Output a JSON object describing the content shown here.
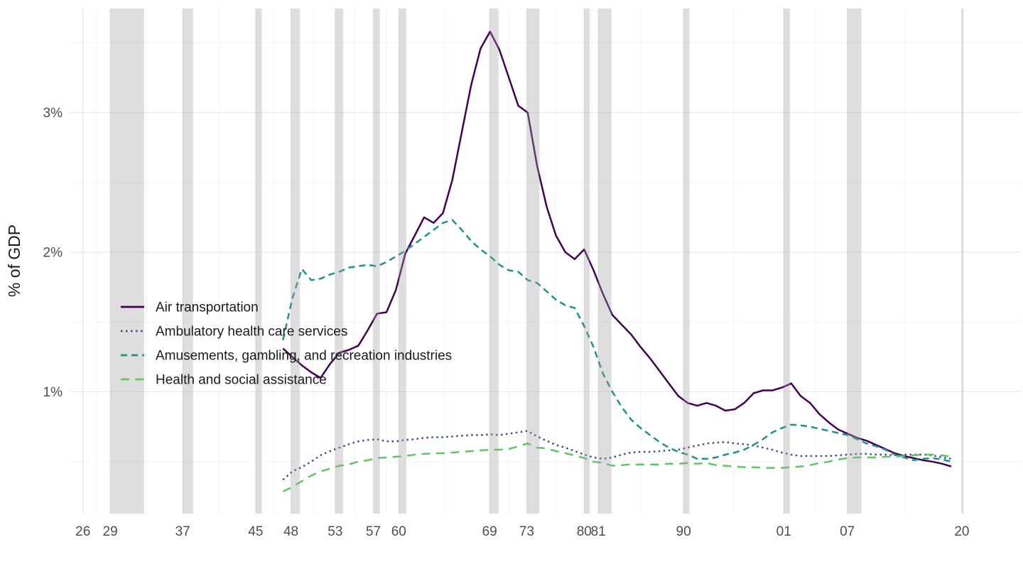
{
  "chart_data": {
    "type": "line",
    "title": "",
    "xlabel": "",
    "ylabel": "% of GDP",
    "x_domain": [
      1925.4,
      2026.5
    ],
    "y_domain": [
      0.13,
      3.74
    ],
    "grid": true,
    "legend_position": "inside-left",
    "background_color": "#ffffff",
    "major_grid_color": "#e8e8e8",
    "minor_grid_color": "#f3f3f3",
    "tick_text_color": "#4d4d4d",
    "recession_band_color": "rgba(160,160,160,0.35)",
    "y_ticks": [
      {
        "value": 1,
        "label": "1%"
      },
      {
        "value": 2,
        "label": "2%"
      },
      {
        "value": 3,
        "label": "3%"
      }
    ],
    "y_minor": [
      0.5,
      1.5,
      2.5,
      3.5
    ],
    "x_ticks": [
      {
        "x": 1926.75,
        "label": "26"
      },
      {
        "x": 1929.65,
        "label": "29"
      },
      {
        "x": 1937.35,
        "label": "37"
      },
      {
        "x": 1945.1,
        "label": "45"
      },
      {
        "x": 1948.85,
        "label": "48"
      },
      {
        "x": 1953.55,
        "label": "53"
      },
      {
        "x": 1957.6,
        "label": "57"
      },
      {
        "x": 1960.3,
        "label": "60"
      },
      {
        "x": 1969.95,
        "label": "69"
      },
      {
        "x": 1973.9,
        "label": "73"
      },
      {
        "x": 1980.0,
        "label": "80"
      },
      {
        "x": 1981.5,
        "label": "81"
      },
      {
        "x": 1990.55,
        "label": "90"
      },
      {
        "x": 2001.2,
        "label": "01"
      },
      {
        "x": 2007.95,
        "label": "07"
      },
      {
        "x": 2020.12,
        "label": "20"
      }
    ],
    "x_minor": [
      1928.2,
      1933.5,
      1941.23,
      1946.98,
      1951.2,
      1955.58,
      1958.95,
      1965.13,
      1971.93,
      1976.95,
      1980.75,
      1986.03,
      1995.88,
      2004.58,
      2014.04
    ],
    "recession_bands": [
      [
        1929.65,
        1933.25
      ],
      [
        1937.35,
        1938.45
      ],
      [
        1945.1,
        1945.75
      ],
      [
        1948.85,
        1949.8
      ],
      [
        1953.55,
        1954.4
      ],
      [
        1957.6,
        1958.3
      ],
      [
        1960.3,
        1961.1
      ],
      [
        1969.95,
        1970.9
      ],
      [
        1973.9,
        1975.25
      ],
      [
        1980.0,
        1980.58
      ],
      [
        1981.5,
        1982.9
      ],
      [
        1990.55,
        1991.2
      ],
      [
        2001.2,
        2001.85
      ],
      [
        2007.95,
        2009.45
      ],
      [
        2020.12,
        2020.3
      ]
    ],
    "start_year": 1948,
    "end_year": 2019,
    "frequency": "annual",
    "years": [
      1948,
      1949,
      1950,
      1951,
      1952,
      1953,
      1954,
      1955,
      1956,
      1957,
      1958,
      1959,
      1960,
      1961,
      1962,
      1963,
      1964,
      1965,
      1966,
      1967,
      1968,
      1969,
      1970,
      1971,
      1972,
      1973,
      1974,
      1975,
      1976,
      1977,
      1978,
      1979,
      1980,
      1981,
      1982,
      1983,
      1984,
      1985,
      1986,
      1987,
      1988,
      1989,
      1990,
      1991,
      1992,
      1993,
      1994,
      1995,
      1996,
      1997,
      1998,
      1999,
      2000,
      2001,
      2002,
      2003,
      2004,
      2005,
      2006,
      2007,
      2008,
      2009,
      2010,
      2011,
      2012,
      2013,
      2014,
      2015,
      2016,
      2017,
      2018,
      2019
    ],
    "series": [
      {
        "name": "Air transportation",
        "color": "#440154",
        "linetype": "solid",
        "values": [
          1.31,
          1.25,
          1.19,
          1.14,
          1.1,
          1.2,
          1.28,
          1.3,
          1.33,
          1.44,
          1.56,
          1.57,
          1.73,
          1.99,
          2.12,
          2.25,
          2.21,
          2.28,
          2.52,
          2.86,
          3.2,
          3.46,
          3.58,
          3.45,
          3.25,
          3.05,
          3.0,
          2.62,
          2.33,
          2.12,
          2.0,
          1.95,
          2.02,
          1.87,
          1.7,
          1.55,
          1.48,
          1.41,
          1.32,
          1.24,
          1.15,
          1.06,
          0.97,
          0.92,
          0.9,
          0.92,
          0.9,
          0.865,
          0.875,
          0.92,
          0.99,
          1.01,
          1.01,
          1.03,
          1.06,
          0.97,
          0.92,
          0.84,
          0.78,
          0.73,
          0.7,
          0.67,
          0.65,
          0.62,
          0.59,
          0.56,
          0.54,
          0.525,
          0.51,
          0.5,
          0.485,
          0.465
        ]
      },
      {
        "name": "Ambulatory health care services",
        "color": "#3B528B",
        "linetype": "dotted",
        "values": [
          0.37,
          0.43,
          0.46,
          0.5,
          0.545,
          0.575,
          0.6,
          0.625,
          0.645,
          0.655,
          0.66,
          0.645,
          0.645,
          0.655,
          0.66,
          0.67,
          0.675,
          0.675,
          0.68,
          0.685,
          0.69,
          0.69,
          0.695,
          0.69,
          0.7,
          0.71,
          0.72,
          0.68,
          0.65,
          0.62,
          0.6,
          0.575,
          0.55,
          0.53,
          0.52,
          0.53,
          0.55,
          0.565,
          0.57,
          0.57,
          0.575,
          0.58,
          0.585,
          0.6,
          0.615,
          0.63,
          0.635,
          0.64,
          0.63,
          0.625,
          0.615,
          0.6,
          0.585,
          0.565,
          0.55,
          0.54,
          0.54,
          0.54,
          0.54,
          0.545,
          0.55,
          0.555,
          0.555,
          0.55,
          0.55,
          0.545,
          0.55,
          0.55,
          0.55,
          0.545,
          0.53,
          0.52
        ]
      },
      {
        "name": "Amusements, gambling, and recreation industries",
        "color": "#21908C",
        "linetype": "dashed",
        "values": [
          1.37,
          1.67,
          1.88,
          1.8,
          1.81,
          1.84,
          1.86,
          1.89,
          1.9,
          1.91,
          1.9,
          1.93,
          1.97,
          2.01,
          2.06,
          2.11,
          2.16,
          2.21,
          2.23,
          2.16,
          2.08,
          2.02,
          1.97,
          1.91,
          1.87,
          1.86,
          1.8,
          1.78,
          1.72,
          1.66,
          1.62,
          1.6,
          1.47,
          1.32,
          1.13,
          1.0,
          0.89,
          0.8,
          0.74,
          0.69,
          0.64,
          0.6,
          0.57,
          0.55,
          0.52,
          0.52,
          0.53,
          0.55,
          0.565,
          0.585,
          0.62,
          0.66,
          0.71,
          0.74,
          0.765,
          0.76,
          0.75,
          0.735,
          0.72,
          0.705,
          0.69,
          0.66,
          0.63,
          0.61,
          0.585,
          0.55,
          0.53,
          0.51,
          0.52,
          0.525,
          0.515,
          0.5
        ]
      },
      {
        "name": "Health and social assistance",
        "color": "#5DC863",
        "linetype": "longdash",
        "values": [
          0.285,
          0.32,
          0.36,
          0.4,
          0.43,
          0.45,
          0.47,
          0.48,
          0.5,
          0.51,
          0.525,
          0.53,
          0.535,
          0.54,
          0.55,
          0.555,
          0.56,
          0.56,
          0.565,
          0.57,
          0.575,
          0.58,
          0.585,
          0.585,
          0.59,
          0.61,
          0.63,
          0.6,
          0.595,
          0.575,
          0.56,
          0.545,
          0.525,
          0.5,
          0.49,
          0.47,
          0.475,
          0.48,
          0.48,
          0.48,
          0.48,
          0.485,
          0.485,
          0.49,
          0.485,
          0.49,
          0.475,
          0.47,
          0.465,
          0.46,
          0.46,
          0.455,
          0.455,
          0.455,
          0.46,
          0.465,
          0.475,
          0.49,
          0.5,
          0.515,
          0.525,
          0.53,
          0.53,
          0.53,
          0.535,
          0.535,
          0.54,
          0.545,
          0.55,
          0.55,
          0.545,
          0.535
        ]
      }
    ]
  }
}
